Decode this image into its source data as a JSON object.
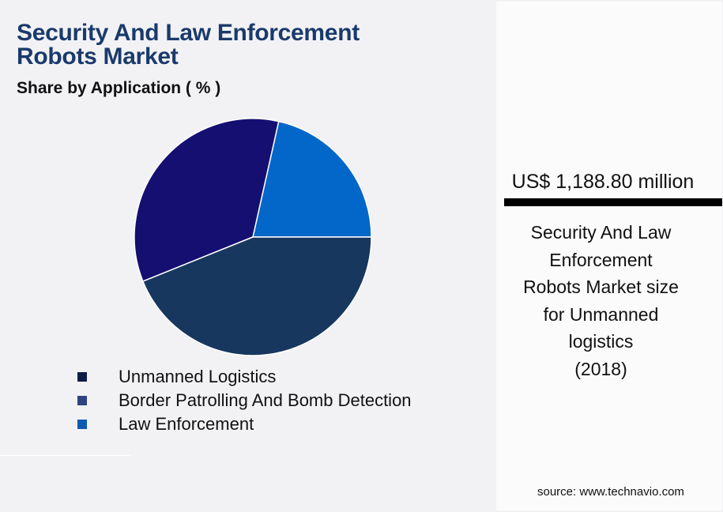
{
  "header": {
    "title_line1": "Security And Law Enforcement",
    "title_line2": "Robots Market",
    "subtitle": "Share by Application ( % )"
  },
  "legend": [
    {
      "label": "Unmanned Logistics",
      "color": "#0e1d48"
    },
    {
      "label": "Border Patrolling And Bomb Detection",
      "color": "#2e4480"
    },
    {
      "label": "Law Enforcement",
      "color": "#0a5bb0"
    }
  ],
  "stat": {
    "value": "US$ 1,188.80 million",
    "description": "Security And Law\nEnforcement\nRobots Market size\nfor Unmanned\nlogistics\n(2018)"
  },
  "source": "source: www.technavio.com",
  "chart_data": {
    "type": "pie",
    "title": "Security And Law Enforcement Robots Market",
    "subtitle": "Share by Application ( % )",
    "categories": [
      "Unmanned Logistics",
      "Border Patrolling And Bomb Detection",
      "Law Enforcement"
    ],
    "values": [
      43.9,
      34.6,
      21.5
    ],
    "colors": [
      "#17375f",
      "#160f72",
      "#0366c9"
    ],
    "legend_position": "bottom",
    "data_labels": false
  }
}
